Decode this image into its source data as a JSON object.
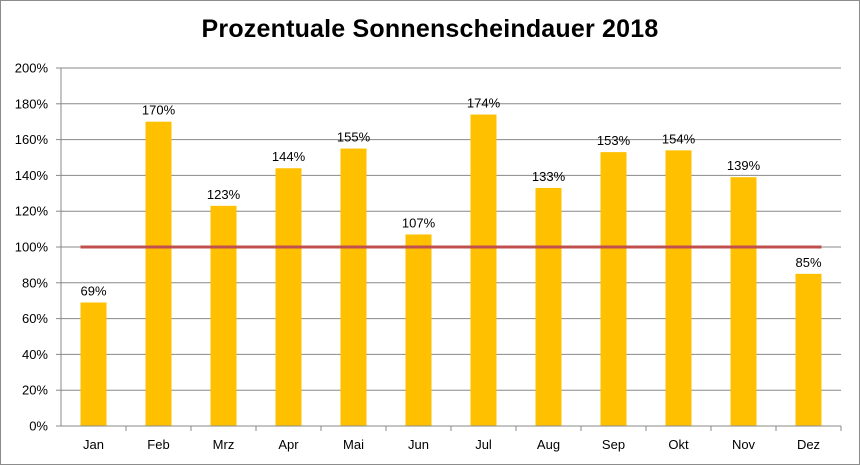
{
  "chart_data": {
    "type": "bar",
    "title": "Prozentuale Sonnenscheindauer 2018",
    "categories": [
      "Jan",
      "Feb",
      "Mrz",
      "Apr",
      "Mai",
      "Jun",
      "Jul",
      "Aug",
      "Sep",
      "Okt",
      "Nov",
      "Dez"
    ],
    "values": [
      69,
      170,
      123,
      144,
      155,
      107,
      174,
      133,
      153,
      154,
      139,
      85
    ],
    "data_labels": [
      "69%",
      "170%",
      "123%",
      "144%",
      "155%",
      "107%",
      "174%",
      "133%",
      "153%",
      "154%",
      "139%",
      "85%"
    ],
    "value_unit": "%",
    "ylim": [
      0,
      200
    ],
    "yticks": [
      0,
      20,
      40,
      60,
      80,
      100,
      120,
      140,
      160,
      180,
      200
    ],
    "ytick_labels": [
      "0%",
      "20%",
      "40%",
      "60%",
      "80%",
      "100%",
      "120%",
      "140%",
      "160%",
      "180%",
      "200%"
    ],
    "reference_line": {
      "value": 100,
      "color": "#c0504d"
    },
    "grid": true,
    "legend": null,
    "xlabel": "",
    "ylabel": "",
    "bar_color": "#ffc000",
    "grid_color": "#888888"
  }
}
